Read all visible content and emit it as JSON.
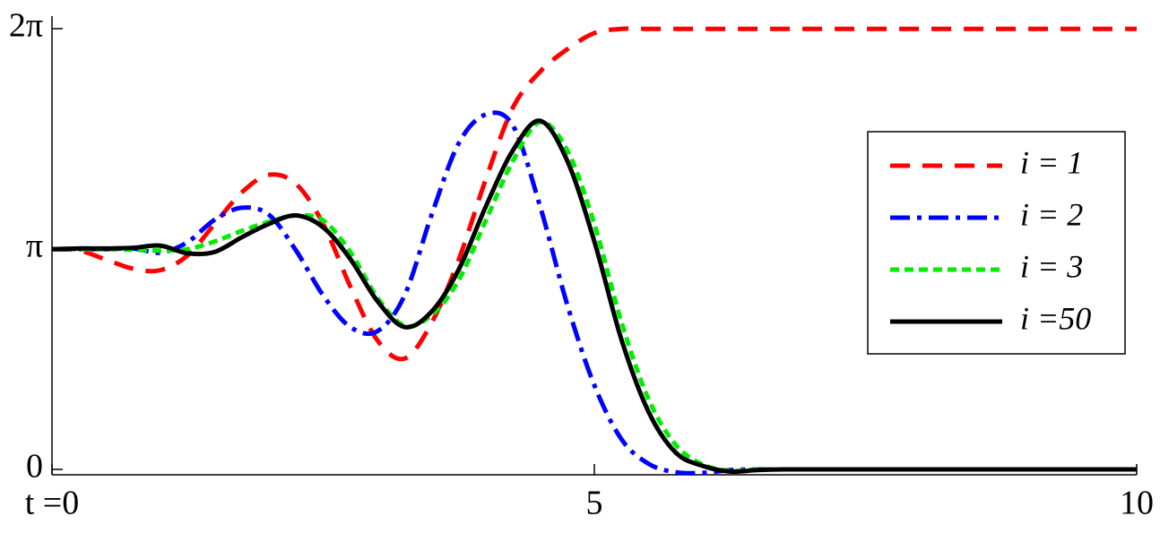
{
  "chart_data": {
    "type": "line",
    "x": [
      0,
      0.25,
      0.5,
      0.75,
      1,
      1.25,
      1.5,
      1.75,
      2,
      2.25,
      2.5,
      2.75,
      3,
      3.25,
      3.5,
      3.75,
      4,
      4.25,
      4.5,
      4.75,
      5,
      5.25,
      5.5,
      5.75,
      6,
      6.25,
      6.5,
      6.75,
      7,
      7.25,
      7.5,
      7.75,
      8,
      8.25,
      8.5,
      8.75,
      9,
      9.25,
      9.5,
      9.75,
      10
    ],
    "series": [
      {
        "name": "i = 1",
        "color": "#ff0000",
        "dash": "22 14",
        "values": [
          3.14,
          3.12,
          2.99,
          2.86,
          2.84,
          3.05,
          3.5,
          3.95,
          4.2,
          4.07,
          3.5,
          2.61,
          1.84,
          1.58,
          2.09,
          2.99,
          4.14,
          5.16,
          5.67,
          5.99,
          6.22,
          6.28,
          6.28,
          6.28,
          6.28,
          6.28,
          6.28,
          6.28,
          6.28,
          6.28,
          6.28,
          6.28,
          6.28,
          6.28,
          6.28,
          6.28,
          6.28,
          6.28,
          6.28,
          6.28,
          6.28
        ]
      },
      {
        "name": "i = 2",
        "color": "#0000ff",
        "dash": "22 8 5 8",
        "values": [
          3.14,
          3.14,
          3.14,
          3.15,
          3.09,
          3.24,
          3.56,
          3.73,
          3.63,
          3.12,
          2.48,
          2.03,
          1.97,
          2.48,
          3.63,
          4.65,
          5.06,
          4.9,
          3.75,
          2.35,
          1.2,
          0.43,
          0.08,
          -0.04,
          -0.05,
          -0.01,
          0,
          0,
          0,
          0,
          0,
          0,
          0,
          0,
          0,
          0,
          0,
          0,
          0,
          0,
          0
        ]
      },
      {
        "name": "i = 3",
        "color": "#00ee00",
        "dash": "10 6",
        "values": [
          3.14,
          3.14,
          3.14,
          3.13,
          3.12,
          3.14,
          3.25,
          3.4,
          3.53,
          3.62,
          3.55,
          3.1,
          2.45,
          2.05,
          2.2,
          2.7,
          3.55,
          4.4,
          4.95,
          4.55,
          3.5,
          2.1,
          1,
          0.35,
          0.07,
          -0.02,
          0,
          0,
          0,
          0,
          0,
          0,
          0,
          0,
          0,
          0,
          0,
          0,
          0,
          0,
          0
        ]
      },
      {
        "name": "i =50",
        "color": "#000000",
        "dash": "none",
        "values": [
          3.14,
          3.15,
          3.15,
          3.16,
          3.19,
          3.08,
          3.1,
          3.31,
          3.5,
          3.62,
          3.45,
          3,
          2.4,
          2.03,
          2.25,
          2.85,
          3.75,
          4.55,
          4.97,
          4.4,
          3.25,
          1.85,
          0.82,
          0.24,
          0.05,
          -0.03,
          -0.01,
          0,
          0,
          0,
          0,
          0,
          0,
          0,
          0,
          0,
          0,
          0,
          0,
          0,
          0
        ]
      }
    ],
    "xlim": [
      0,
      10
    ],
    "xticks": [
      {
        "value": 0,
        "label": "t =0"
      },
      5,
      10
    ],
    "ylim": [
      0,
      6.2832
    ],
    "yticks": [
      0,
      {
        "value": 3.1416,
        "label": "π"
      },
      {
        "value": 6.2832,
        "label": "2π"
      }
    ],
    "legend": "right"
  }
}
